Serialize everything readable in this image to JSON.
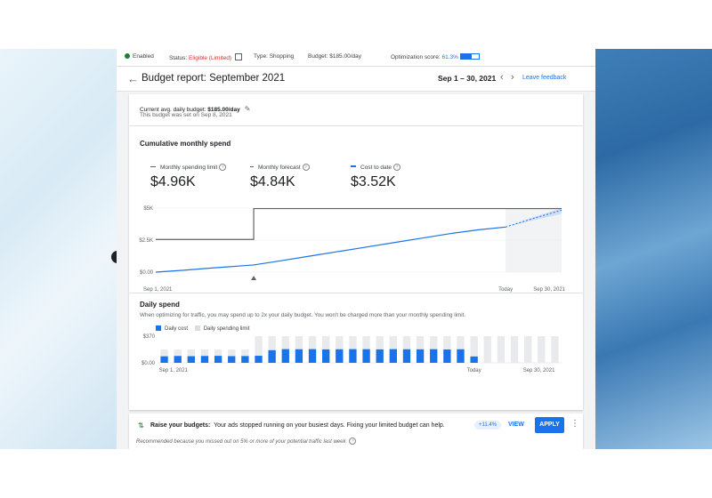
{
  "status_bar": {
    "enabled": "Enabled",
    "status_label": "Status:",
    "status_value": "Eligible (Limited)",
    "type": "Type: Shopping",
    "budget": "Budget: $185.00/day",
    "optimization_label": "Optimization score:",
    "optimization_value": "61.3%",
    "optimization_fraction": 0.613
  },
  "header": {
    "title": "Budget report: September 2021",
    "date_range": "Sep 1 – 30, 2021",
    "feedback": "Leave feedback"
  },
  "budget_info": {
    "label": "Current avg. daily budget:",
    "value": "$185.00/day",
    "sub": "This budget was set on Sep 8, 2021"
  },
  "cumulative": {
    "title": "Cumulative monthly spend",
    "legend": [
      {
        "label": "Monthly spending limit",
        "value": "$4.96K",
        "color": "#5f6368"
      },
      {
        "label": "Monthly forecast",
        "value": "$4.84K",
        "color": "#5f6368"
      },
      {
        "label": "Cost to date",
        "value": "$3.52K",
        "color": "#1a73e8"
      }
    ],
    "y_ticks": [
      "$5K",
      "$2.5K",
      "$0.00"
    ],
    "x_ticks": [
      "Sep 1, 2021",
      "Today",
      "Sep 30, 2021"
    ]
  },
  "daily": {
    "title": "Daily spend",
    "description": "When optimizing for traffic, you may spend up to 2x your daily budget. You won't be charged more than your monthly spending limit.",
    "legend_cost": "Daily cost",
    "legend_limit": "Daily spending limit",
    "y_ticks": [
      "$370",
      "$0.00"
    ],
    "x_ticks": [
      "Sep 1, 2021",
      "Today",
      "Sep 30, 2021"
    ]
  },
  "chart_data": [
    {
      "type": "line",
      "title": "Cumulative monthly spend",
      "x": [
        1,
        3,
        5,
        7,
        8,
        10,
        12,
        14,
        16,
        18,
        20,
        22,
        24,
        26,
        28,
        30
      ],
      "ylim": [
        0,
        5000
      ],
      "series": [
        {
          "name": "Monthly spending limit",
          "values": [
            2550,
            2550,
            2550,
            2550,
            4960,
            4960,
            4960,
            4960,
            4960,
            4960,
            4960,
            4960,
            4960,
            4960,
            4960,
            4960
          ]
        },
        {
          "name": "Cost to date",
          "values": [
            0,
            150,
            320,
            480,
            560,
            900,
            1250,
            1600,
            1950,
            2300,
            2650,
            3000,
            3300,
            3520,
            null,
            null
          ]
        },
        {
          "name": "Monthly forecast",
          "values": [
            null,
            null,
            null,
            null,
            null,
            null,
            null,
            null,
            null,
            null,
            null,
            null,
            null,
            3520,
            4200,
            4840
          ]
        }
      ]
    },
    {
      "type": "bar",
      "title": "Daily spend",
      "categories": [
        "1",
        "2",
        "3",
        "4",
        "5",
        "6",
        "7",
        "8",
        "9",
        "10",
        "11",
        "12",
        "13",
        "14",
        "15",
        "16",
        "17",
        "18",
        "19",
        "20",
        "21",
        "22",
        "23",
        "24",
        "25",
        "26",
        "27",
        "28",
        "29",
        "30"
      ],
      "ylim": [
        0,
        370
      ],
      "series": [
        {
          "name": "Daily cost",
          "values": [
            90,
            95,
            92,
            95,
            97,
            93,
            94,
            98,
            175,
            190,
            188,
            190,
            186,
            188,
            190,
            189,
            186,
            190,
            188,
            187,
            189,
            185,
            188,
            88,
            null,
            null,
            null,
            null,
            null,
            null
          ]
        },
        {
          "name": "Daily spending limit",
          "values": [
            185,
            185,
            185,
            185,
            185,
            185,
            185,
            370,
            370,
            370,
            370,
            370,
            370,
            370,
            370,
            370,
            370,
            370,
            370,
            370,
            370,
            370,
            370,
            370,
            370,
            370,
            370,
            370,
            370,
            370
          ]
        }
      ]
    }
  ],
  "recommendation": {
    "title": "Raise your budgets:",
    "text": "Your ads stopped running on your busiest days. Fixing your limited budget can help.",
    "chip": "+11.4%",
    "view": "VIEW",
    "apply": "APPLY",
    "note": "Recommended because you missed out on 5% or more of your potential traffic last week"
  }
}
